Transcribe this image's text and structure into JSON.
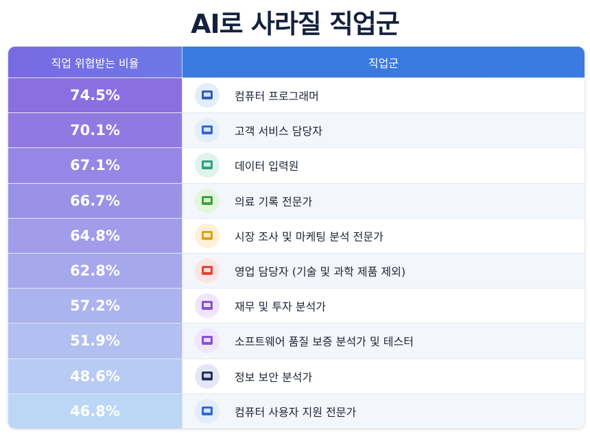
{
  "title": "AI로 사라질 직업군",
  "table": {
    "header": [
      "직업 위협받는 비율",
      "직업군"
    ],
    "rows": [
      [
        "74.5%",
        "컴퓨터 프로그래머"
      ],
      [
        "70.1%",
        "고객 서비스 담당자"
      ],
      [
        "67.1%",
        "데이터 입력원"
      ],
      [
        "66.7%",
        "의료 기록 전문가"
      ],
      [
        "64.8%",
        "시장 조사 및 마케팅 분석 전문가"
      ],
      [
        "62.8%",
        "영업 담당자 (기술 및 과학 제품 제외)"
      ],
      [
        "57.2%",
        "재무 및 투자 분석가"
      ],
      [
        "51.9%",
        "소프트웨어 품질 보증 분석가 및 테스터"
      ],
      [
        "48.6%",
        "정보 보안 분석가"
      ],
      [
        "46.8%",
        "컴퓨터 사용자 지원 전문가"
      ]
    ]
  }
}
